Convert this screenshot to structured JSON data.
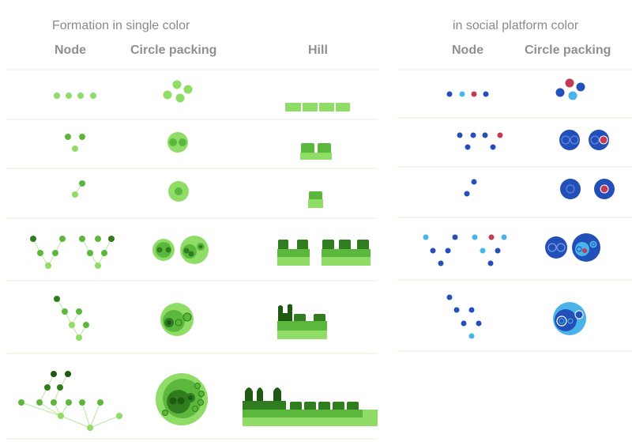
{
  "left_panel": {
    "title": "Formation in single color",
    "headers": {
      "node": "Node",
      "circle_packing": "Circle packing",
      "hill": "Hill"
    }
  },
  "right_panel": {
    "title": "in social platform color",
    "headers": {
      "node": "Node",
      "circle_packing": "Circle packing"
    }
  },
  "colors": {
    "green_light": "#8fdc66",
    "green_mid": "#5cb83c",
    "green_dark": "#2f7d1e",
    "green_darkest": "#1e5a12",
    "blue": "#2350b8",
    "blue_light": "#4ab4ea",
    "red": "#c23a55",
    "divider": "#e6efd6"
  }
}
